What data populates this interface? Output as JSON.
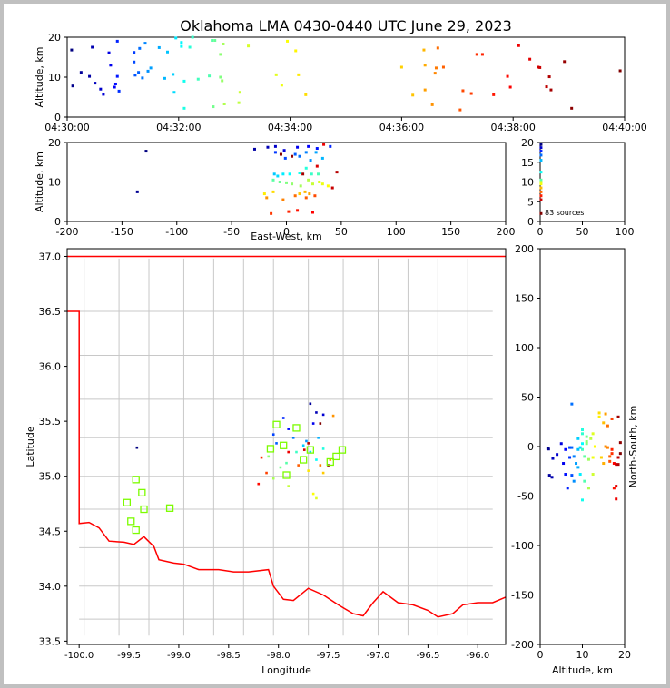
{
  "title": "Oklahoma LMA 0430-0440 UTC June 29, 2023",
  "source_count_label": "83 sources",
  "chart_data": [
    {
      "id": "time_altitude",
      "type": "scatter",
      "ylabel": "Altitude, km",
      "xlabel": "",
      "x_ticks": [
        "04:30:00",
        "04:32:00",
        "04:34:00",
        "04:36:00",
        "04:38:00",
        "04:40:00"
      ],
      "xlim_minutes": [
        0,
        10
      ],
      "ylim": [
        0,
        20
      ],
      "y_ticks": [
        0,
        10,
        20
      ],
      "grid": false,
      "color_scale": "time (blue to red)",
      "points_minutes_altitude": [
        [
          0.08,
          16.8
        ],
        [
          0.1,
          7.8
        ],
        [
          0.25,
          11.2
        ],
        [
          0.4,
          10.2
        ],
        [
          0.45,
          17.5
        ],
        [
          0.5,
          8.5
        ],
        [
          0.6,
          7
        ],
        [
          0.65,
          5.7
        ],
        [
          0.75,
          16.1
        ],
        [
          0.78,
          13
        ],
        [
          0.85,
          7.5
        ],
        [
          0.87,
          8.3
        ],
        [
          0.9,
          10.2
        ],
        [
          0.9,
          19
        ],
        [
          0.93,
          6.5
        ],
        [
          1.2,
          16.2
        ],
        [
          1.2,
          13.8
        ],
        [
          1.22,
          10.5
        ],
        [
          1.28,
          11.2
        ],
        [
          1.3,
          17.2
        ],
        [
          1.35,
          9.8
        ],
        [
          1.4,
          18.5
        ],
        [
          1.45,
          11.5
        ],
        [
          1.5,
          12.3
        ],
        [
          1.65,
          17.4
        ],
        [
          1.75,
          9.7
        ],
        [
          1.8,
          16.3
        ],
        [
          1.9,
          10.7
        ],
        [
          1.92,
          6.2
        ],
        [
          1.95,
          19.8
        ],
        [
          2.05,
          18.7
        ],
        [
          2.05,
          17.7
        ],
        [
          2.1,
          9
        ],
        [
          2.1,
          2.2
        ],
        [
          2.2,
          17.5
        ],
        [
          2.25,
          20
        ],
        [
          2.35,
          9.5
        ],
        [
          2.55,
          10.3
        ],
        [
          2.6,
          19.2
        ],
        [
          2.65,
          19.2
        ],
        [
          2.62,
          2.6
        ],
        [
          2.75,
          10
        ],
        [
          2.75,
          15.7
        ],
        [
          2.78,
          9.1
        ],
        [
          2.8,
          18.3
        ],
        [
          2.82,
          3.3
        ],
        [
          3.08,
          3.6
        ],
        [
          3.1,
          6.2
        ],
        [
          3.25,
          17.8
        ],
        [
          3.75,
          10.6
        ],
        [
          3.85,
          8
        ],
        [
          3.95,
          19
        ],
        [
          4.1,
          16.6
        ],
        [
          4.15,
          10.6
        ],
        [
          4.28,
          5.6
        ],
        [
          6.0,
          12.5
        ],
        [
          6.2,
          5.5
        ],
        [
          6.4,
          16.8
        ],
        [
          6.42,
          13
        ],
        [
          6.42,
          6.8
        ],
        [
          6.55,
          3.1
        ],
        [
          6.6,
          11
        ],
        [
          6.62,
          12.3
        ],
        [
          6.65,
          17.3
        ],
        [
          6.75,
          12.5
        ],
        [
          7.05,
          1.8
        ],
        [
          7.1,
          6.6
        ],
        [
          7.25,
          5.9
        ],
        [
          7.35,
          15.7
        ],
        [
          7.45,
          15.7
        ],
        [
          7.65,
          5.6
        ],
        [
          7.9,
          10.2
        ],
        [
          7.95,
          7.5
        ],
        [
          8.1,
          17.9
        ],
        [
          8.3,
          14.5
        ],
        [
          8.45,
          12.5
        ],
        [
          8.48,
          12.4
        ],
        [
          8.6,
          7.6
        ],
        [
          8.65,
          10.1
        ],
        [
          8.68,
          6.8
        ],
        [
          8.92,
          13.9
        ],
        [
          9.05,
          2.2
        ],
        [
          9.92,
          11.6
        ]
      ]
    },
    {
      "id": "ew_altitude",
      "type": "scatter",
      "xlabel": "East-West, km",
      "ylabel": "Altitude, km",
      "xlim": [
        -200,
        200
      ],
      "ylim": [
        0,
        20
      ],
      "x_ticks": [
        -200,
        -150,
        -100,
        -50,
        0,
        50,
        100,
        150,
        200
      ],
      "y_ticks": [
        0,
        10,
        20
      ],
      "grid": false,
      "points": [
        [
          -128,
          17.8
        ],
        [
          -136,
          7.5
        ],
        [
          -29,
          18.3
        ],
        [
          -17,
          18.8
        ],
        [
          -10,
          19
        ],
        [
          -2,
          18
        ],
        [
          10,
          18.8
        ],
        [
          20,
          19
        ],
        [
          28,
          18.5
        ],
        [
          40,
          19
        ],
        [
          -10,
          17.5
        ],
        [
          -1,
          16
        ],
        [
          8,
          17
        ],
        [
          12,
          16.5
        ],
        [
          18,
          17.5
        ],
        [
          22,
          15.5
        ],
        [
          27,
          17.5
        ],
        [
          33,
          16
        ],
        [
          -11,
          12
        ],
        [
          -8,
          11.5
        ],
        [
          -3,
          12
        ],
        [
          3,
          12
        ],
        [
          12,
          12.3
        ],
        [
          18,
          13.5
        ],
        [
          23,
          12
        ],
        [
          29,
          12
        ],
        [
          -12,
          10.5
        ],
        [
          -6,
          10
        ],
        [
          0,
          9.8
        ],
        [
          5,
          9.5
        ],
        [
          13,
          9
        ],
        [
          20,
          10.5
        ],
        [
          24,
          9.5
        ],
        [
          30,
          10
        ],
        [
          33,
          9.5
        ],
        [
          38,
          9
        ],
        [
          -20,
          7
        ],
        [
          -12,
          7.5
        ],
        [
          12,
          7
        ],
        [
          17,
          7.5
        ],
        [
          21,
          7
        ],
        [
          -18,
          6
        ],
        [
          -3,
          5.5
        ],
        [
          8,
          6.5
        ],
        [
          18,
          6
        ],
        [
          26,
          6.5
        ],
        [
          -14,
          2
        ],
        [
          2,
          2.5
        ],
        [
          10,
          2.8
        ],
        [
          24,
          2.3
        ],
        [
          34,
          19.5
        ],
        [
          28,
          14
        ],
        [
          42,
          8.5
        ],
        [
          46,
          12.5
        ],
        [
          15,
          12
        ],
        [
          5,
          16.5
        ],
        [
          -5,
          17
        ]
      ]
    },
    {
      "id": "altitude_histogram",
      "type": "scatter",
      "xlim": [
        0,
        100
      ],
      "ylim": [
        0,
        20
      ],
      "x_ticks": [
        0,
        50,
        100
      ],
      "y_ticks": [
        0,
        5,
        10,
        15,
        20
      ],
      "grid": false,
      "points": [
        [
          1,
          19.5
        ],
        [
          1,
          18.7
        ],
        [
          1,
          17.8
        ],
        [
          1,
          16.8
        ],
        [
          1,
          15.5
        ],
        [
          1,
          12.5
        ],
        [
          1,
          10.5
        ],
        [
          1,
          10
        ],
        [
          1,
          9.5
        ],
        [
          1,
          8.5
        ],
        [
          1,
          7.5
        ],
        [
          1,
          6.5
        ],
        [
          1,
          5.5
        ],
        [
          1,
          2
        ]
      ]
    },
    {
      "id": "plan_view",
      "type": "map",
      "xlabel": "Longitude",
      "ylabel": "Latitude",
      "xlim": [
        -100.12,
        -95.72
      ],
      "ylim": [
        33.47,
        37.07
      ],
      "x_ticks": [
        -100.0,
        -99.5,
        -99.0,
        -98.5,
        -98.0,
        -97.5,
        -97.0,
        -96.5,
        -96.0
      ],
      "y_ticks": [
        33.5,
        34.0,
        34.5,
        35.0,
        35.5,
        36.0,
        36.5,
        37.0
      ],
      "grid": false,
      "border_color": "#ff0000",
      "county_color": "#c8c8c8",
      "station_color": "#7cfc00",
      "stations": [
        [
          -99.43,
          34.97
        ],
        [
          -99.37,
          34.85
        ],
        [
          -99.52,
          34.76
        ],
        [
          -99.35,
          34.7
        ],
        [
          -99.48,
          34.59
        ],
        [
          -99.43,
          34.51
        ],
        [
          -99.09,
          34.71
        ],
        [
          -97.82,
          35.44
        ],
        [
          -98.02,
          35.47
        ],
        [
          -98.08,
          35.25
        ],
        [
          -97.95,
          35.28
        ],
        [
          -97.68,
          35.24
        ],
        [
          -97.36,
          35.24
        ],
        [
          -97.42,
          35.18
        ],
        [
          -97.48,
          35.13
        ],
        [
          -97.75,
          35.15
        ],
        [
          -97.92,
          35.01
        ]
      ],
      "points": [
        [
          -99.42,
          35.26
        ],
        [
          -97.68,
          35.66
        ],
        [
          -97.62,
          35.58
        ],
        [
          -97.55,
          35.56
        ],
        [
          -97.65,
          35.48
        ],
        [
          -97.9,
          35.43
        ],
        [
          -97.95,
          35.53
        ],
        [
          -98.05,
          35.38
        ],
        [
          -98.02,
          35.3
        ],
        [
          -97.85,
          35.35
        ],
        [
          -97.72,
          35.32
        ],
        [
          -97.6,
          35.35
        ],
        [
          -97.75,
          35.28
        ],
        [
          -97.68,
          35.22
        ],
        [
          -97.62,
          35.15
        ],
        [
          -97.55,
          35.25
        ],
        [
          -97.82,
          35.22
        ],
        [
          -97.92,
          35.12
        ],
        [
          -97.98,
          35.08
        ],
        [
          -98.1,
          35.18
        ],
        [
          -98.05,
          34.98
        ],
        [
          -97.9,
          34.91
        ],
        [
          -97.62,
          34.8
        ],
        [
          -97.65,
          34.84
        ],
        [
          -97.7,
          35.05
        ],
        [
          -97.55,
          35.03
        ],
        [
          -97.48,
          35.15
        ],
        [
          -97.45,
          35.55
        ],
        [
          -97.58,
          35.1
        ],
        [
          -97.8,
          35.1
        ],
        [
          -98.12,
          35.03
        ],
        [
          -98.17,
          35.17
        ],
        [
          -98.2,
          34.93
        ],
        [
          -97.9,
          35.22
        ],
        [
          -97.74,
          35.24
        ],
        [
          -97.7,
          35.3
        ],
        [
          -97.5,
          35.1
        ],
        [
          -97.58,
          35.48
        ]
      ]
    },
    {
      "id": "ns_altitude",
      "type": "scatter",
      "xlabel": "Altitude, km",
      "ylabel": "North-South, km",
      "xlim": [
        0,
        20
      ],
      "ylim": [
        -200,
        200
      ],
      "x_ticks": [
        0,
        10,
        20
      ],
      "y_ticks": [
        -200,
        -150,
        -100,
        -50,
        0,
        50,
        100,
        150,
        200
      ],
      "grid": false,
      "points": [
        [
          1.8,
          -2
        ],
        [
          2,
          -2.5
        ],
        [
          2.2,
          -29
        ],
        [
          2.8,
          -31
        ],
        [
          3,
          -12
        ],
        [
          4,
          -8
        ],
        [
          5,
          3
        ],
        [
          5.5,
          -17
        ],
        [
          6,
          -3
        ],
        [
          6,
          -28
        ],
        [
          6.5,
          -42
        ],
        [
          7,
          -11
        ],
        [
          7,
          -1
        ],
        [
          7.5,
          -29
        ],
        [
          7.5,
          -1
        ],
        [
          7.5,
          43
        ],
        [
          8,
          -10
        ],
        [
          8,
          -35
        ],
        [
          8.5,
          -17
        ],
        [
          9,
          -21
        ],
        [
          9,
          -3
        ],
        [
          9,
          8
        ],
        [
          9.5,
          -1
        ],
        [
          9.5,
          -28
        ],
        [
          10,
          3
        ],
        [
          10,
          -54
        ],
        [
          10,
          17
        ],
        [
          10,
          13
        ],
        [
          10,
          -3
        ],
        [
          10.5,
          -35
        ],
        [
          10.5,
          -10
        ],
        [
          11,
          10
        ],
        [
          11,
          3
        ],
        [
          11,
          5
        ],
        [
          11.5,
          -13
        ],
        [
          11.5,
          -42
        ],
        [
          12,
          8
        ],
        [
          12.5,
          -28
        ],
        [
          12.5,
          13
        ],
        [
          12.5,
          -11
        ],
        [
          13,
          0
        ],
        [
          14,
          30
        ],
        [
          14,
          34
        ],
        [
          14.5,
          -11
        ],
        [
          15,
          24
        ],
        [
          15,
          -17
        ],
        [
          15.5,
          33
        ],
        [
          15.5,
          0
        ],
        [
          16,
          -1
        ],
        [
          16,
          21
        ],
        [
          16.5,
          -10
        ],
        [
          16.5,
          -15
        ],
        [
          17,
          28
        ],
        [
          17,
          -7
        ],
        [
          17,
          -3
        ],
        [
          17.5,
          -42
        ],
        [
          17.5,
          -17
        ],
        [
          18,
          -53
        ],
        [
          18,
          -40
        ],
        [
          18,
          -18
        ],
        [
          18.5,
          -11
        ],
        [
          18.5,
          -18
        ],
        [
          18.5,
          30
        ],
        [
          19,
          4
        ],
        [
          19,
          -7
        ]
      ]
    }
  ]
}
